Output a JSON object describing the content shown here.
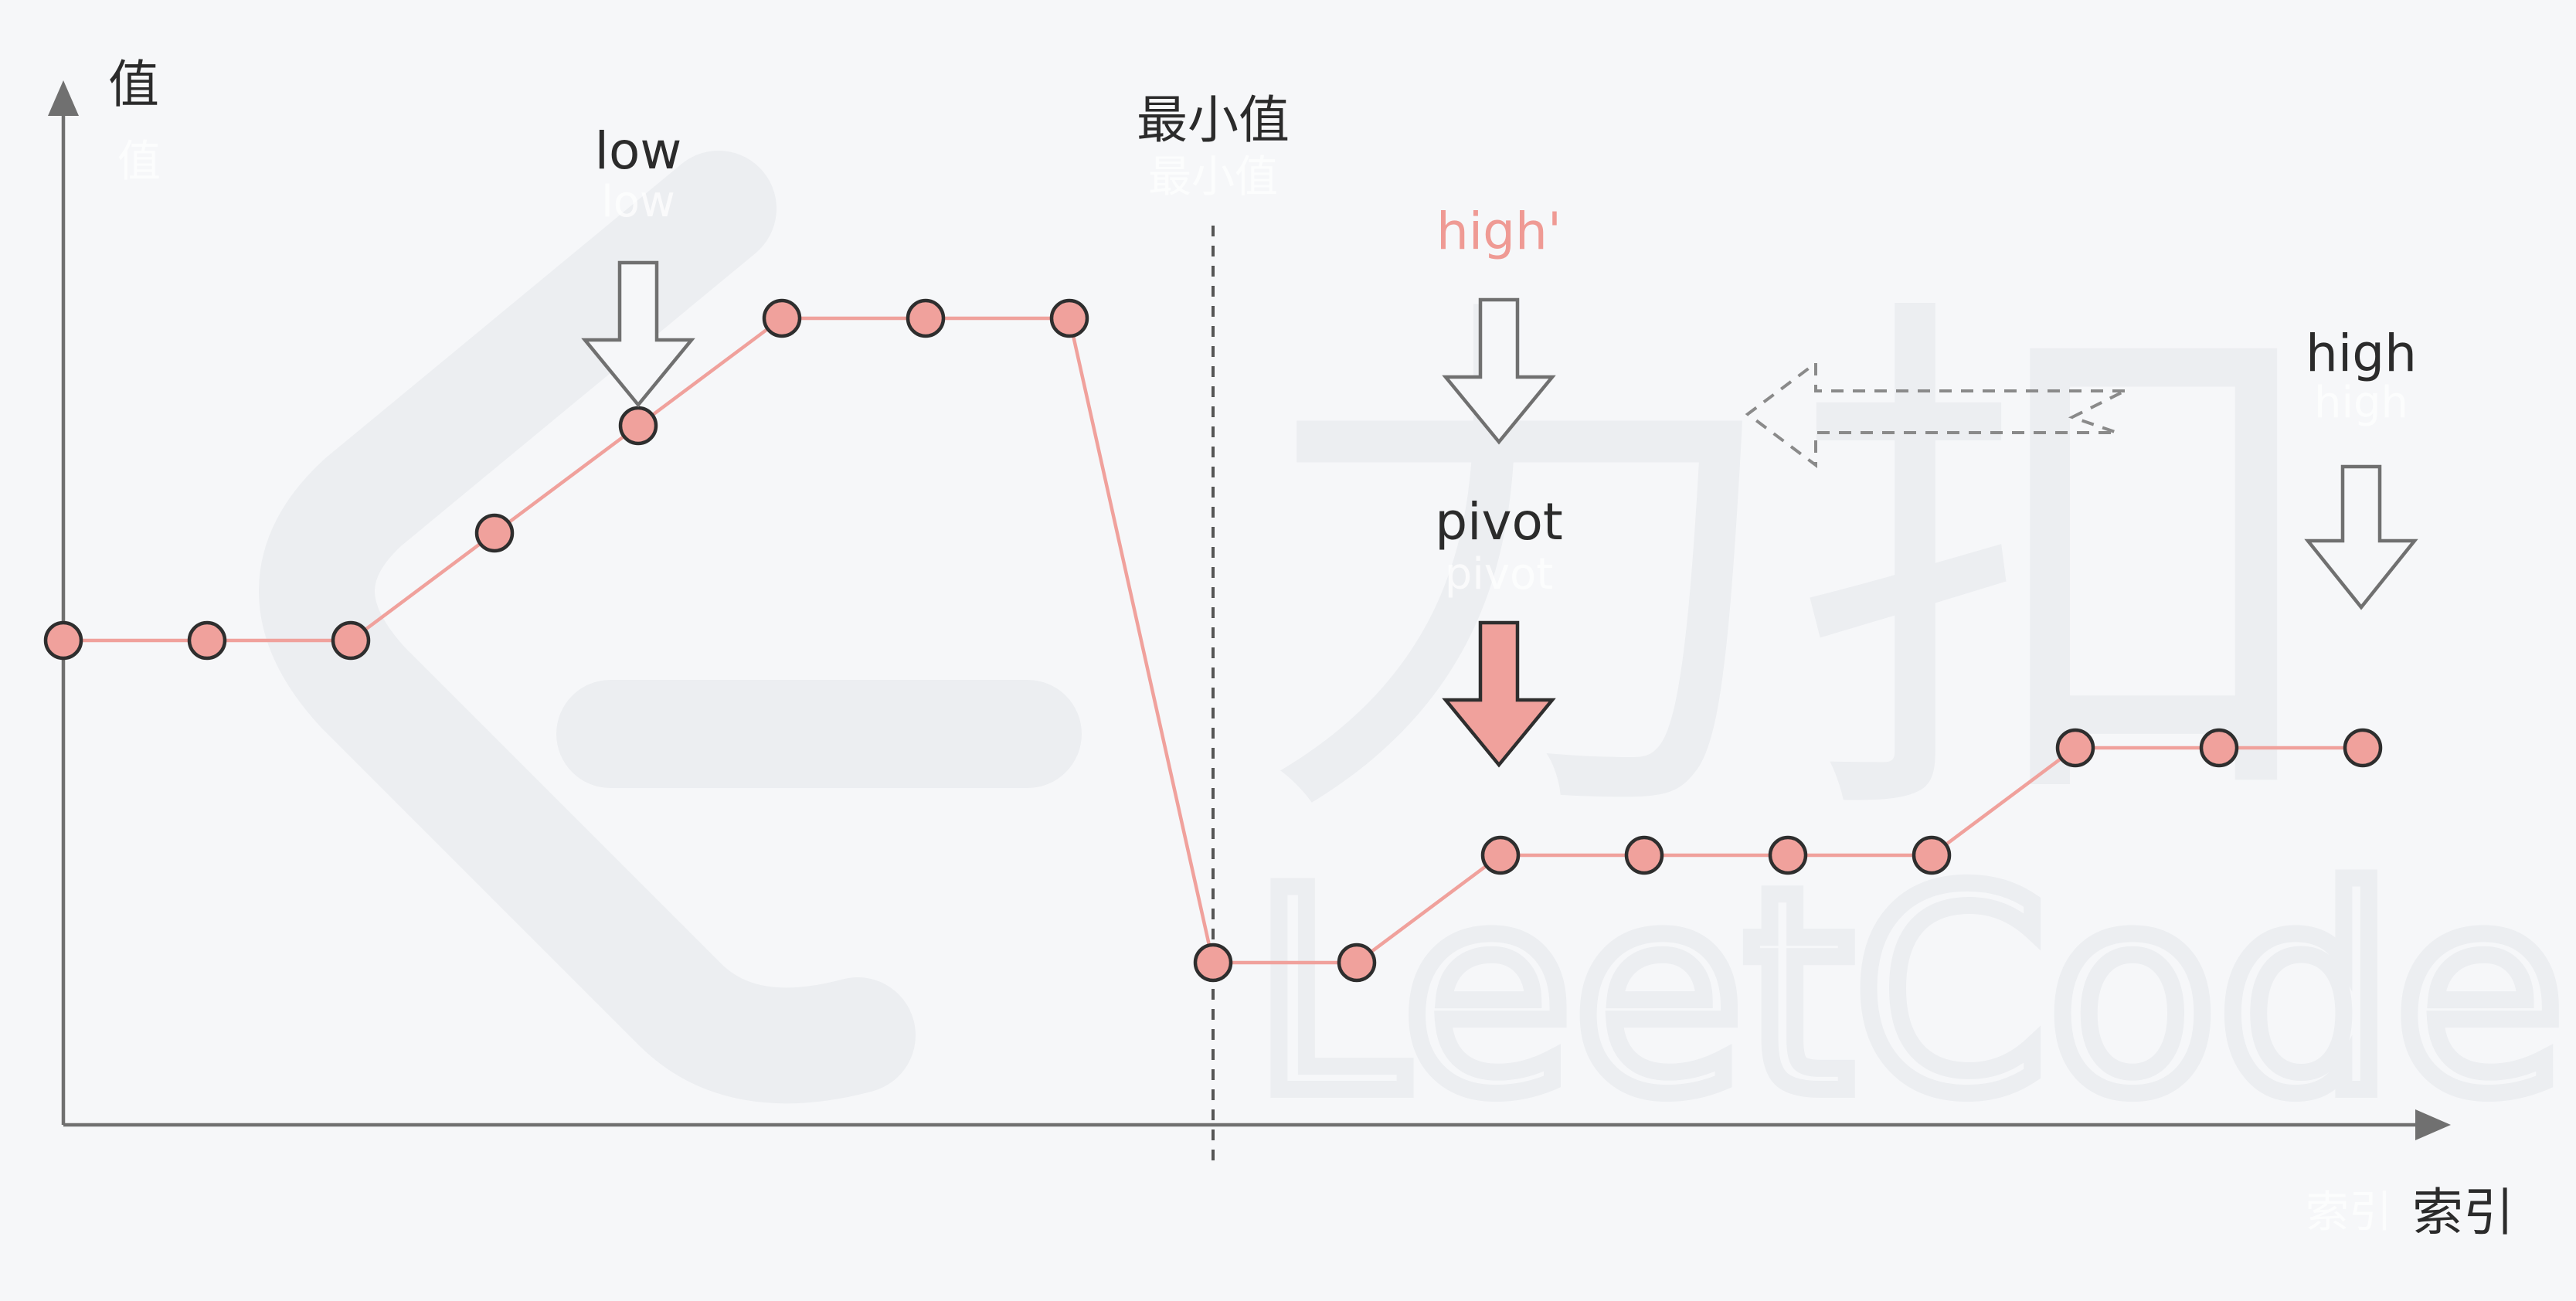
{
  "labels": {
    "y_axis": "值",
    "x_axis": "索引",
    "minimum": "最小值",
    "low": "low",
    "high_prime": "high'",
    "high": "high",
    "pivot": "pivot"
  },
  "watermark": {
    "text": "LeetCode",
    "glyphs": "力扣"
  },
  "colors": {
    "background": "#f6f7f9",
    "node_fill": "#f0a19c",
    "line": "#f0a19c",
    "axis": "#707070",
    "text": "#2b2b2b",
    "high_prime_text": "#ef9a94",
    "pivot_arrow": "#f0a19c",
    "watermark": "#e9eaed"
  },
  "chart_data": {
    "type": "line",
    "series": [
      {
        "x": [
          0,
          1,
          2,
          3,
          4,
          5,
          6,
          7,
          8,
          9,
          10,
          11,
          12,
          13,
          14,
          15,
          16
        ],
        "y": [
          3,
          3,
          3,
          4,
          5,
          6,
          6,
          6,
          0,
          0,
          1,
          1,
          1,
          1,
          2,
          2,
          2
        ]
      }
    ],
    "minimum_index": 8,
    "pointers": {
      "low": 4,
      "high_prime": 10,
      "pivot": 10,
      "high": 16
    },
    "pointer_motion": "high moves left to high'"
  }
}
